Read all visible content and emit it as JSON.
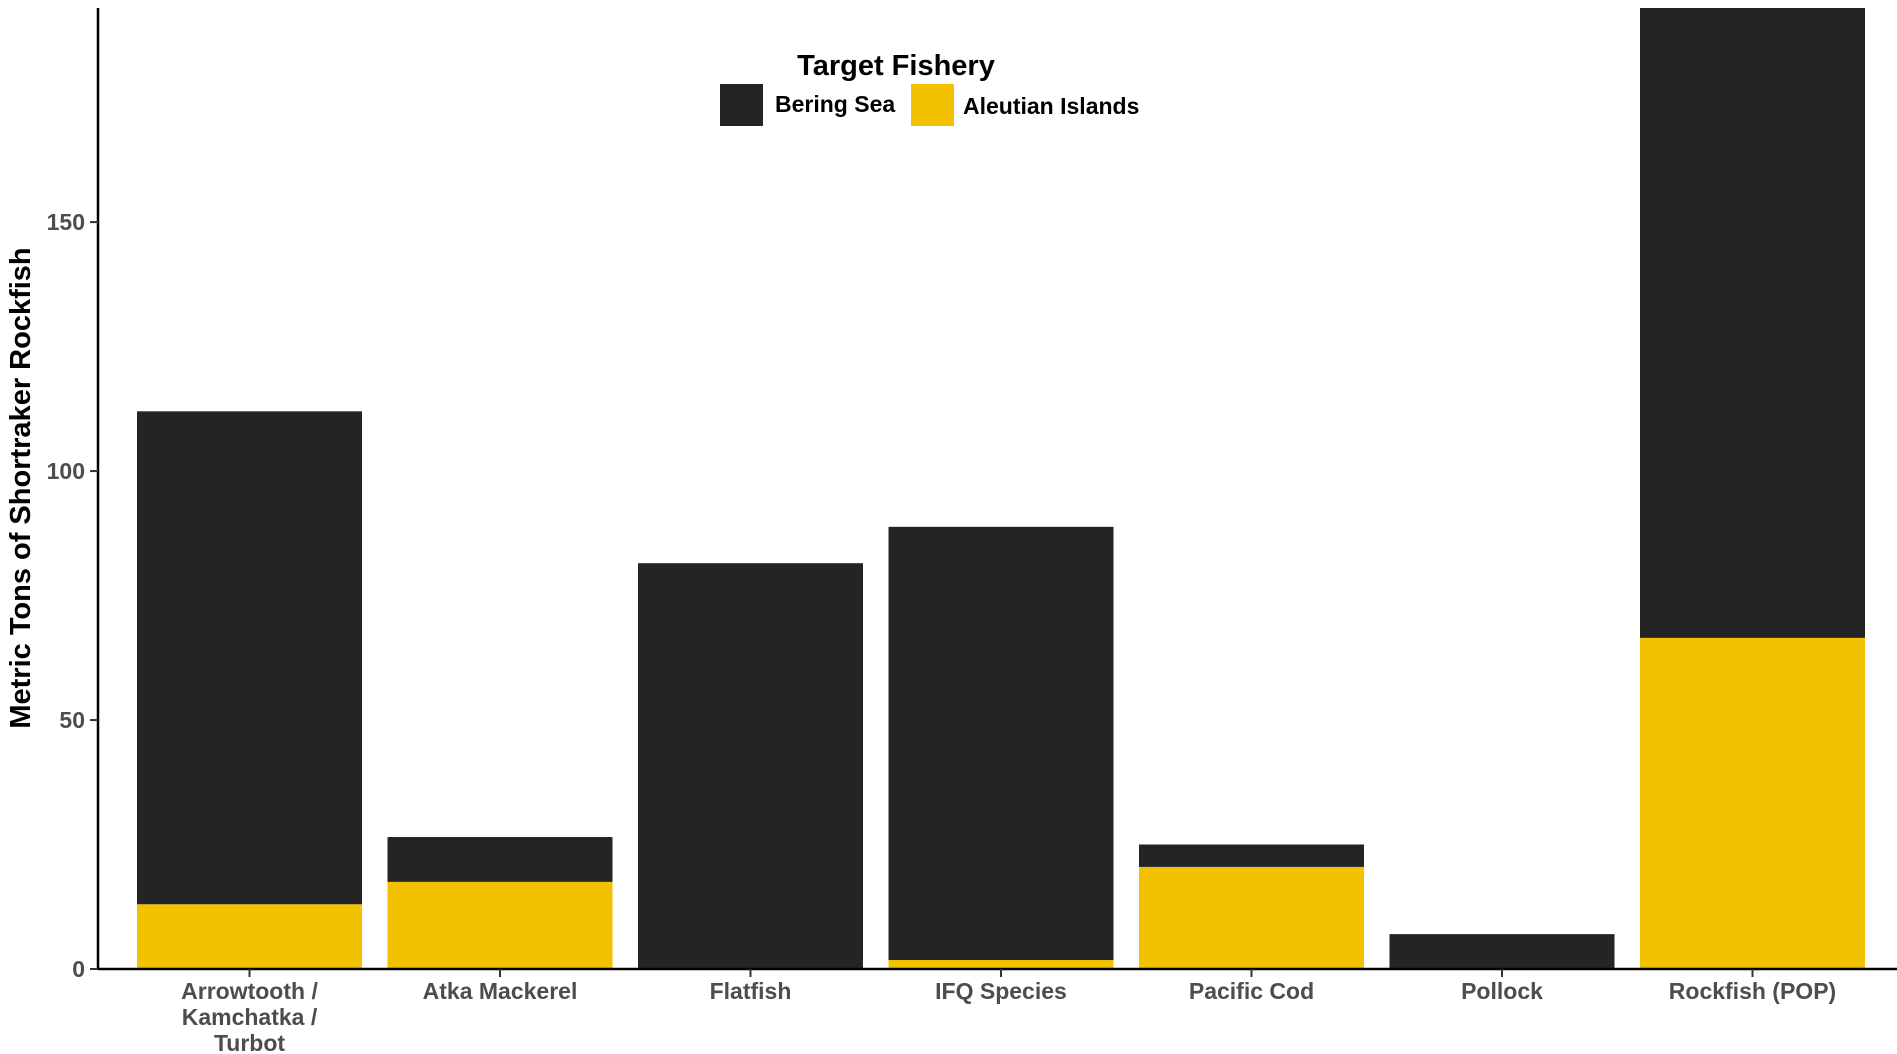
{
  "chart_data": {
    "type": "bar",
    "stacked": true,
    "title": "",
    "xlabel": "",
    "ylabel": "Metric Tons of Shortraker Rockfish",
    "ylim": [
      0,
      193
    ],
    "yticks": [
      0,
      50,
      100,
      150
    ],
    "grid": false,
    "legend": {
      "title": "Target Fishery",
      "placement": "top-center"
    },
    "categories": [
      [
        "Arrowtooth /",
        "Kamchatka /",
        "Turbot"
      ],
      [
        "Atka Mackerel"
      ],
      [
        "Flatfish"
      ],
      [
        "IFQ Species"
      ],
      [
        "Pacific Cod"
      ],
      [
        "Pollock"
      ],
      [
        "Rockfish (POP)"
      ]
    ],
    "series": [
      {
        "name": "Aleutian Islands",
        "color": "#f2c200",
        "values": [
          13,
          17.5,
          0,
          1.8,
          20.5,
          0,
          66.5
        ]
      },
      {
        "name": "Bering Sea",
        "color": "#242424",
        "values": [
          99,
          9,
          81.5,
          87,
          4.5,
          7,
          126.5
        ]
      }
    ],
    "legend_order": [
      "Bering Sea",
      "Aleutian Islands"
    ]
  }
}
